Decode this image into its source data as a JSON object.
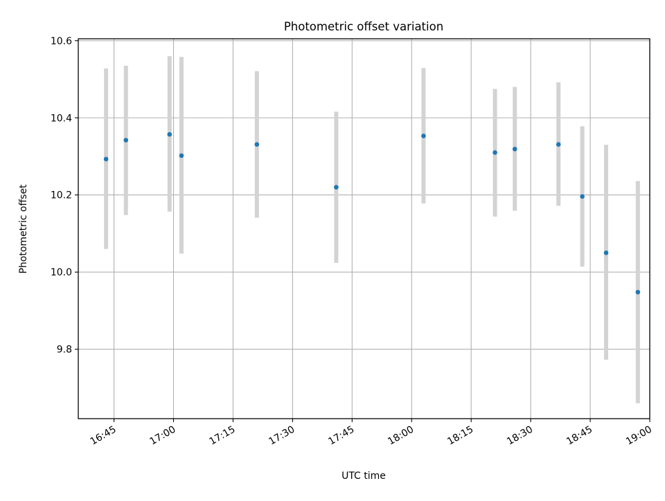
{
  "chart_data": {
    "type": "scatter",
    "title": "Photometric offset variation",
    "xlabel": "UTC time",
    "ylabel": "Photometric offset",
    "xlim": [
      "16:36",
      "19:00"
    ],
    "ylim": [
      9.62,
      10.605
    ],
    "grid": true,
    "x_ticks": [
      "16:45",
      "17:00",
      "17:15",
      "17:30",
      "17:45",
      "18:00",
      "18:15",
      "18:30",
      "18:45",
      "19:00"
    ],
    "y_ticks": [
      9.8,
      10.0,
      10.2,
      10.4,
      10.6
    ],
    "y_tick_labels": [
      "9.8",
      "10.0",
      "10.2",
      "10.4",
      "10.6"
    ],
    "colors": {
      "point": "#1f77b4",
      "errorbar": "#d3d3d3",
      "grid": "#b0b0b0"
    },
    "series": [
      {
        "points": [
          {
            "x": "16:43",
            "y": 10.293,
            "low": 10.06,
            "high": 10.528
          },
          {
            "x": "16:48",
            "y": 10.342,
            "low": 10.148,
            "high": 10.535
          },
          {
            "x": "16:59",
            "y": 10.357,
            "low": 10.157,
            "high": 10.56
          },
          {
            "x": "17:02",
            "y": 10.302,
            "low": 10.048,
            "high": 10.558
          },
          {
            "x": "17:21",
            "y": 10.331,
            "low": 10.141,
            "high": 10.521
          },
          {
            "x": "17:41",
            "y": 10.22,
            "low": 10.024,
            "high": 10.416
          },
          {
            "x": "18:03",
            "y": 10.353,
            "low": 10.178,
            "high": 10.529
          },
          {
            "x": "18:21",
            "y": 10.31,
            "low": 10.144,
            "high": 10.475
          },
          {
            "x": "18:26",
            "y": 10.319,
            "low": 10.159,
            "high": 10.48
          },
          {
            "x": "18:37",
            "y": 10.331,
            "low": 10.172,
            "high": 10.492
          },
          {
            "x": "18:43",
            "y": 10.196,
            "low": 10.014,
            "high": 10.378
          },
          {
            "x": "18:49",
            "y": 10.05,
            "low": 9.773,
            "high": 10.33
          },
          {
            "x": "18:57",
            "y": 9.948,
            "low": 9.66,
            "high": 10.236
          }
        ]
      }
    ]
  }
}
